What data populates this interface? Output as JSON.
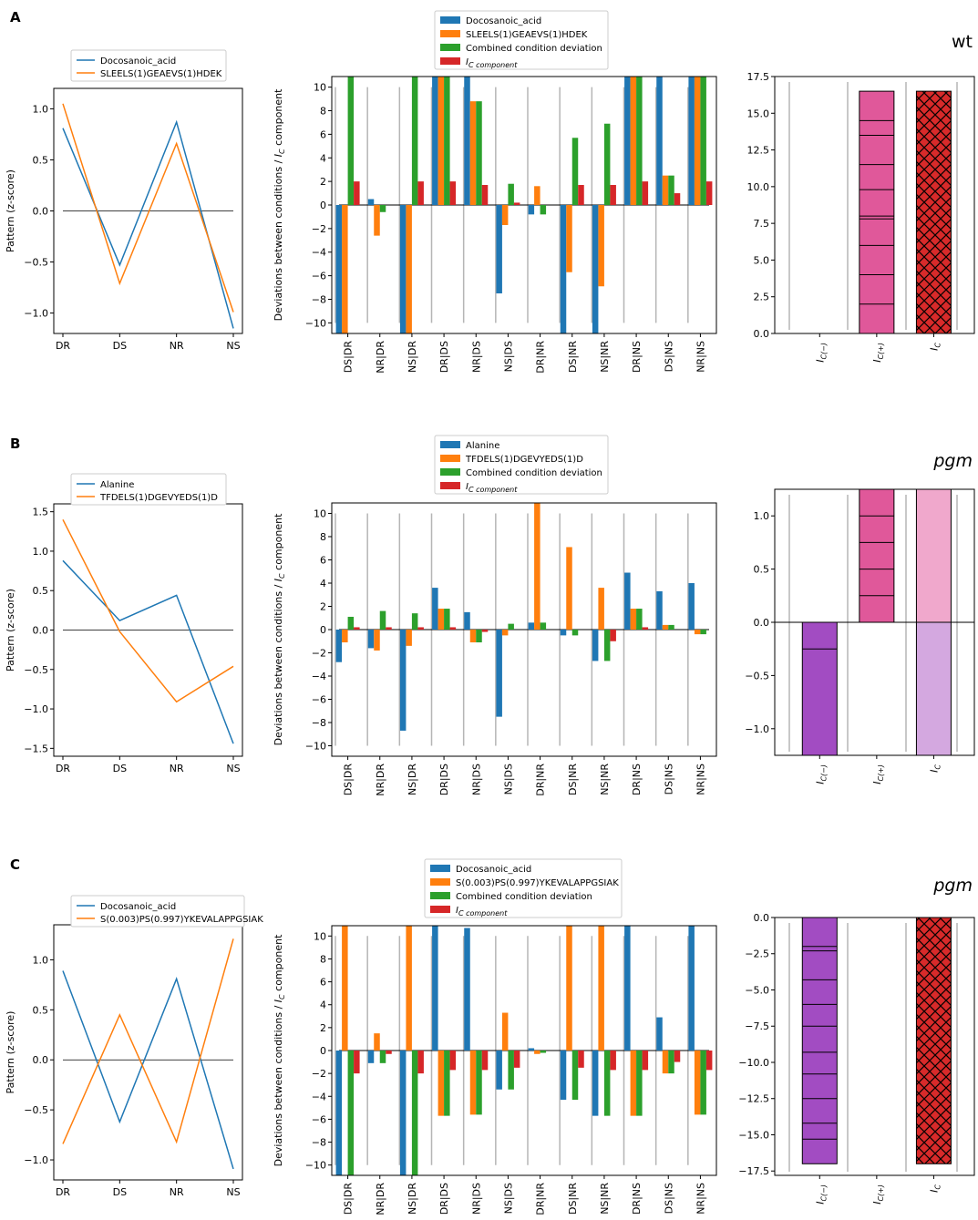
{
  "colors": {
    "blue": "#1f77b4",
    "orange": "#ff7f0e",
    "green": "#2ca02c",
    "red": "#d62728",
    "pink": "#e0589a",
    "light_pink": "#f0a8cc",
    "purple": "#a24cc2",
    "light_purple": "#d4a8e0",
    "crimson": "#d82a2a",
    "grey": "#b5b5b5"
  },
  "chart_data": [
    {
      "id": "A",
      "panel_label": "A",
      "line": {
        "type": "line",
        "x": [
          "DR",
          "DS",
          "NR",
          "NS"
        ],
        "ylabel": "Pattern (z-score)",
        "ylim": [
          -1.2,
          1.2
        ],
        "yticks": [
          1.0,
          0.5,
          0.0,
          -0.5,
          -1.0
        ],
        "ytick_labels": [
          "1.0",
          "0.5",
          "0.0",
          "−0.5",
          "−1.0"
        ],
        "legend": [
          "Docosanoic_acid",
          "SLEELS(1)GEAEVS(1)HDEK"
        ],
        "series": [
          {
            "name": "Docosanoic_acid",
            "values": [
              0.81,
              -0.53,
              0.87,
              -1.15
            ]
          },
          {
            "name": "SLEELS(1)GEAEVS(1)HDEK",
            "values": [
              1.05,
              -0.71,
              0.66,
              -0.99
            ]
          }
        ]
      },
      "bars": {
        "type": "bar",
        "ylabel": "Deviations between conditions / I_C component",
        "ylim": [
          -10.9,
          10.9
        ],
        "yticks": [
          10,
          8,
          6,
          4,
          2,
          0,
          -2,
          -4,
          -6,
          -8,
          -10
        ],
        "ytick_labels": [
          "10",
          "8",
          "6",
          "4",
          "2",
          "0",
          "−2",
          "−4",
          "−6",
          "−8",
          "−10"
        ],
        "categories": [
          "DS|DR",
          "NR|DR",
          "NS|DR",
          "DR|DS",
          "NR|DS",
          "NS|DS",
          "DR|NR",
          "DS|NR",
          "NS|NR",
          "DR|NS",
          "DS|NS",
          "NR|NS"
        ],
        "legend": [
          "Docosanoic_acid",
          "SLEELS(1)GEAEVS(1)HDEK",
          "Combined condition deviation",
          "I_C component"
        ],
        "series": [
          {
            "name": "Docosanoic_acid",
            "values": [
              -11,
              0.5,
              -11,
              11,
              11,
              -7.5,
              -0.8,
              -11,
              -11,
              11,
              11,
              11
            ]
          },
          {
            "name": "SLEELS(1)GEAEVS(1)HDEK",
            "values": [
              -11,
              -2.6,
              -11,
              11,
              8.8,
              -1.7,
              1.6,
              -5.7,
              -6.9,
              11,
              2.5,
              11
            ]
          },
          {
            "name": "Combined condition deviation",
            "values": [
              11,
              -0.6,
              11,
              11,
              8.8,
              1.8,
              -0.8,
              5.7,
              6.9,
              11,
              2.5,
              11
            ]
          },
          {
            "name": "I_C component",
            "values": [
              2.0,
              0,
              2.0,
              2.0,
              1.7,
              0.2,
              0,
              1.7,
              1.7,
              2.0,
              1.0,
              2.0
            ]
          }
        ]
      },
      "ic": {
        "type": "bar",
        "title": "wt",
        "title_italic": false,
        "ylim": [
          0,
          17.5
        ],
        "yticks": [
          17.5,
          15.0,
          12.5,
          10.0,
          7.5,
          5.0,
          2.5,
          0.0
        ],
        "ytick_labels": [
          "17.5",
          "15.0",
          "12.5",
          "10.0",
          "7.5",
          "5.0",
          "2.5",
          "0.0"
        ],
        "categories": [
          "I_C(−)",
          "I_C(+)",
          "I_C"
        ],
        "values": [
          0,
          16.5,
          16.5
        ],
        "segments": [
          2.0,
          4.0,
          6.0,
          7.8,
          8.0,
          9.8,
          11.5,
          13.5,
          14.5
        ],
        "extra_vlines": [
          0.3,
          1.7,
          2.7
        ],
        "fills": [
          "none",
          "pink",
          "crimson_hatch"
        ]
      }
    },
    {
      "id": "B",
      "panel_label": "B",
      "line": {
        "type": "line",
        "x": [
          "DR",
          "DS",
          "NR",
          "NS"
        ],
        "ylabel": "Pattern (z-score)",
        "ylim": [
          -1.6,
          1.6
        ],
        "yticks": [
          1.5,
          1.0,
          0.5,
          0.0,
          -0.5,
          -1.0,
          -1.5
        ],
        "ytick_labels": [
          "1.5",
          "1.0",
          "0.5",
          "0.0",
          "−0.5",
          "−1.0",
          "−1.5"
        ],
        "legend": [
          "Alanine",
          "TFDELS(1)DGEVYEDS(1)D"
        ],
        "series": [
          {
            "name": "Alanine",
            "values": [
              0.88,
              0.12,
              0.44,
              -1.44
            ]
          },
          {
            "name": "TFDELS(1)DGEVYEDS(1)D",
            "values": [
              1.4,
              -0.02,
              -0.91,
              -0.46
            ]
          }
        ]
      },
      "bars": {
        "type": "bar",
        "ylabel": "Deviations between conditions / I_C component",
        "ylim": [
          -10.9,
          10.9
        ],
        "yticks": [
          10,
          8,
          6,
          4,
          2,
          0,
          -2,
          -4,
          -6,
          -8,
          -10
        ],
        "ytick_labels": [
          "10",
          "8",
          "6",
          "4",
          "2",
          "0",
          "−2",
          "−4",
          "−6",
          "−8",
          "−10"
        ],
        "categories": [
          "DS|DR",
          "NR|DR",
          "NS|DR",
          "DR|DS",
          "NR|DS",
          "NS|DS",
          "DR|NR",
          "DS|NR",
          "NS|NR",
          "DR|NS",
          "DS|NS",
          "NR|NS"
        ],
        "legend": [
          "Alanine",
          "TFDELS(1)DGEVYEDS(1)D",
          "Combined condition deviation",
          "I_C component"
        ],
        "series": [
          {
            "name": "Alanine",
            "values": [
              -2.8,
              -1.6,
              -8.7,
              3.6,
              1.5,
              -7.5,
              0.6,
              -0.5,
              -2.7,
              4.9,
              3.3,
              4.0
            ]
          },
          {
            "name": "TFDELS(1)DGEVYEDS(1)D",
            "values": [
              -1.1,
              -1.8,
              -1.4,
              1.8,
              -1.1,
              -0.5,
              11,
              7.1,
              3.6,
              1.8,
              0.4,
              -0.4
            ]
          },
          {
            "name": "Combined condition deviation",
            "values": [
              1.1,
              1.6,
              1.4,
              1.8,
              -1.1,
              0.5,
              0.6,
              -0.5,
              -2.7,
              1.8,
              0.4,
              -0.4
            ]
          },
          {
            "name": "I_C component",
            "values": [
              0.2,
              0.2,
              0.2,
              0.2,
              -0.2,
              0,
              0,
              0,
              -1.0,
              0.2,
              0,
              0
            ]
          }
        ]
      },
      "ic": {
        "type": "bar",
        "title": "pgm",
        "title_italic": true,
        "ylim": [
          -1.25,
          1.25
        ],
        "yticks": [
          1.0,
          0.5,
          0.0,
          -0.5,
          -1.0
        ],
        "ytick_labels": [
          "1.0",
          "0.5",
          "0.0",
          "−0.5",
          "−1.0"
        ],
        "categories": [
          "I_C(−)",
          "I_C(+)",
          "I_C"
        ],
        "negative_values": [
          -1.25,
          0,
          -1.25
        ],
        "positive_values": [
          0,
          1.25,
          1.25
        ],
        "segments_pos": [
          0.25,
          0.5,
          0.75,
          1.0
        ],
        "segments_neg": [
          -0.25
        ],
        "extra_vlines": [
          0.3,
          1.7,
          2.7
        ]
      }
    },
    {
      "id": "C",
      "panel_label": "C",
      "line": {
        "type": "line",
        "x": [
          "DR",
          "DS",
          "NR",
          "NS"
        ],
        "ylabel": "Pattern (z-score)",
        "ylim": [
          -1.2,
          1.35
        ],
        "yticks": [
          1.0,
          0.5,
          0.0,
          -0.5,
          -1.0
        ],
        "ytick_labels": [
          "1.0",
          "0.5",
          "0.0",
          "−0.5",
          "−1.0"
        ],
        "legend": [
          "Docosanoic_acid",
          "S(0.003)PS(0.997)YKEVALAPPGSIAK"
        ],
        "series": [
          {
            "name": "Docosanoic_acid",
            "values": [
              0.89,
              -0.62,
              0.81,
              -1.09
            ]
          },
          {
            "name": "S(0.003)PS(0.997)YKEVALAPPGSIAK",
            "values": [
              -0.84,
              0.45,
              -0.82,
              1.21
            ]
          }
        ]
      },
      "bars": {
        "type": "bar",
        "ylabel": "Deviations between conditions / I_C component",
        "ylim": [
          -10.9,
          10.9
        ],
        "yticks": [
          10,
          8,
          6,
          4,
          2,
          0,
          -2,
          -4,
          -6,
          -8,
          -10
        ],
        "ytick_labels": [
          "10",
          "8",
          "6",
          "4",
          "2",
          "0",
          "−2",
          "−4",
          "−6",
          "−8",
          "−10"
        ],
        "categories": [
          "DS|DR",
          "NR|DR",
          "NS|DR",
          "DR|DS",
          "NR|DS",
          "NS|DS",
          "DR|NR",
          "DS|NR",
          "NS|NR",
          "DR|NS",
          "DS|NS",
          "NR|NS"
        ],
        "legend": [
          "Docosanoic_acid",
          "S(0.003)PS(0.997)YKEVALAPPGSIAK",
          "Combined condition deviation",
          "I_C component"
        ],
        "series": [
          {
            "name": "Docosanoic_acid",
            "values": [
              -11,
              -1.1,
              -11,
              11,
              10.7,
              -3.4,
              0.2,
              -4.3,
              -5.7,
              11,
              2.9,
              11
            ]
          },
          {
            "name": "S(0.003)PS(0.997)YKEVALAPPGSIAK",
            "values": [
              11,
              1.5,
              11,
              -5.7,
              -5.6,
              3.3,
              -0.3,
              11,
              11,
              -5.7,
              -2.0,
              -5.6
            ]
          },
          {
            "name": "Combined condition deviation",
            "values": [
              -11,
              -1.1,
              -11,
              -5.7,
              -5.6,
              -3.4,
              -0.2,
              -4.3,
              -5.7,
              -5.7,
              -2.0,
              -5.6
            ]
          },
          {
            "name": "I_C component",
            "values": [
              -2.0,
              -0.3,
              -2.0,
              -1.7,
              -1.7,
              -1.5,
              0,
              -1.5,
              -1.7,
              -1.7,
              -1.0,
              -1.7
            ]
          }
        ]
      },
      "ic": {
        "type": "bar",
        "title": "pgm",
        "title_italic": true,
        "ylim": [
          -17.8,
          0
        ],
        "yticks": [
          0.0,
          -2.5,
          -5.0,
          -7.5,
          -10.0,
          -12.5,
          -15.0,
          -17.5
        ],
        "ytick_labels": [
          "0.0",
          "−2.5",
          "−5.0",
          "−7.5",
          "−10.0",
          "−12.5",
          "−15.0",
          "−17.5"
        ],
        "categories": [
          "I_C(−)",
          "I_C(+)",
          "I_C"
        ],
        "values": [
          -17.0,
          0,
          -17.0
        ],
        "segments": [
          -2.0,
          -2.3,
          -4.3,
          -6.0,
          -7.5,
          -9.3,
          -10.8,
          -12.5,
          -14.2,
          -15.3
        ],
        "extra_vlines": [
          0.3,
          1.7,
          2.7
        ],
        "fills": [
          "purple",
          "none",
          "crimson_hatch"
        ]
      }
    }
  ]
}
